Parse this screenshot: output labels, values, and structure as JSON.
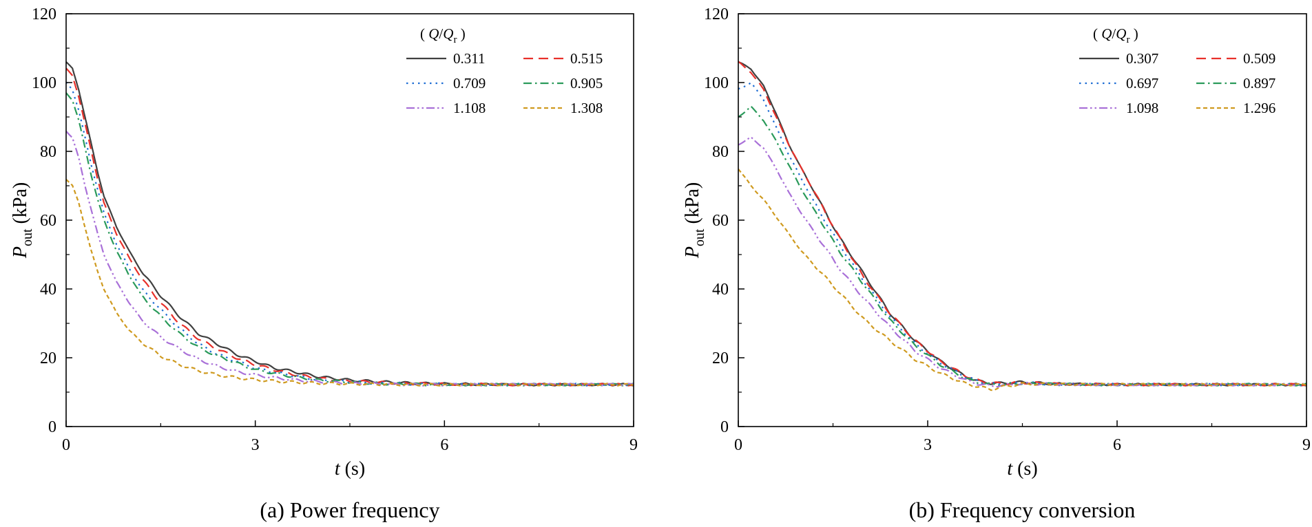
{
  "chart_data": [
    {
      "type": "line",
      "title": "",
      "caption": "(a) Power frequency",
      "xlabel": {
        "var": "t",
        "unit": " (s)"
      },
      "ylabel": {
        "var": "P",
        "sub": "out",
        "unit": " (kPa)"
      },
      "xlim": [
        0,
        9
      ],
      "ylim": [
        0,
        120
      ],
      "xticks": [
        0,
        3,
        6,
        9
      ],
      "yticks": [
        0,
        20,
        40,
        60,
        80,
        100,
        120
      ],
      "grid": false,
      "legend": {
        "title": "( Q/Q",
        "title_sub": "r",
        "title_end": " )",
        "position": "top-right"
      },
      "series": [
        {
          "name": "0.311",
          "color": "#404040",
          "dash": "solid",
          "x": [
            0,
            0.1,
            0.2,
            0.3,
            0.4,
            0.5,
            0.6,
            0.8,
            1.0,
            1.2,
            1.5,
            1.8,
            2.1,
            2.4,
            2.7,
            3.0,
            3.3,
            3.6,
            4.0,
            4.5,
            5.0,
            5.5,
            6.0,
            7.0,
            8.0,
            9.0
          ],
          "y": [
            106,
            104,
            98,
            90,
            82,
            74,
            67,
            58,
            51,
            45,
            38,
            32,
            27,
            24,
            21,
            19,
            17,
            16,
            14.5,
            13.5,
            13,
            12.6,
            12.4,
            12.2,
            12.2,
            12.2
          ]
        },
        {
          "name": "0.515",
          "color": "#e8302a",
          "dash": "dash",
          "x": [
            0,
            0.1,
            0.2,
            0.3,
            0.4,
            0.5,
            0.6,
            0.8,
            1.0,
            1.2,
            1.5,
            1.8,
            2.1,
            2.4,
            2.7,
            3.0,
            3.3,
            3.6,
            4.0,
            4.5,
            5.0,
            5.5,
            6.0,
            7.0,
            8.0,
            9.0
          ],
          "y": [
            104,
            102,
            96,
            88,
            80,
            72,
            65,
            56,
            49,
            43,
            36,
            30,
            25.5,
            22.5,
            20,
            18,
            16.5,
            15.2,
            14,
            13.2,
            12.8,
            12.5,
            12.3,
            12.2,
            12.2,
            12.2
          ]
        },
        {
          "name": "0.709",
          "color": "#1f6ed4",
          "dash": "dot",
          "x": [
            0,
            0.1,
            0.2,
            0.3,
            0.4,
            0.5,
            0.6,
            0.8,
            1.0,
            1.2,
            1.5,
            1.8,
            2.1,
            2.4,
            2.7,
            3.0,
            3.3,
            3.6,
            4.0,
            4.5,
            5.0,
            5.5,
            6.0,
            7.0,
            8.0,
            9.0
          ],
          "y": [
            100,
            98,
            92,
            84,
            76,
            69,
            62,
            53,
            46,
            40,
            34,
            28.5,
            24,
            21,
            19,
            17,
            15.8,
            14.8,
            13.6,
            13,
            12.6,
            12.4,
            12.3,
            12.2,
            12.2,
            12.2
          ]
        },
        {
          "name": "0.905",
          "color": "#2a9a5a",
          "dash": "dashdot",
          "x": [
            0,
            0.1,
            0.2,
            0.3,
            0.4,
            0.5,
            0.6,
            0.8,
            1.0,
            1.2,
            1.5,
            1.8,
            2.1,
            2.4,
            2.7,
            3.0,
            3.3,
            3.6,
            4.0,
            4.5,
            5.0,
            5.5,
            6.0,
            7.0,
            8.0,
            9.0
          ],
          "y": [
            97,
            95,
            89,
            81,
            73,
            66,
            60,
            51,
            44,
            38,
            32,
            27,
            23,
            20.5,
            18.5,
            16.5,
            15.5,
            14.5,
            13.5,
            12.9,
            12.5,
            12.3,
            12.2,
            12.2,
            12.2,
            12.2
          ]
        },
        {
          "name": "1.108",
          "color": "#a970d8",
          "dash": "dashdotdot",
          "x": [
            0,
            0.1,
            0.2,
            0.3,
            0.4,
            0.5,
            0.6,
            0.8,
            1.0,
            1.2,
            1.5,
            1.8,
            2.1,
            2.4,
            2.7,
            3.0,
            3.3,
            3.6,
            4.0,
            4.5,
            5.0,
            5.5,
            6.0,
            7.0,
            8.0,
            9.0
          ],
          "y": [
            86,
            84,
            78,
            70,
            63,
            56,
            50,
            42,
            36,
            31,
            26,
            22.5,
            19.5,
            17.5,
            16,
            15,
            14.2,
            13.6,
            13,
            12.6,
            12.4,
            12.2,
            12.2,
            12.2,
            12.2,
            12.2
          ]
        },
        {
          "name": "1.308",
          "color": "#cf9a1f",
          "dash": "shortdash",
          "x": [
            0,
            0.1,
            0.2,
            0.3,
            0.4,
            0.5,
            0.6,
            0.8,
            1.0,
            1.2,
            1.5,
            1.8,
            2.1,
            2.4,
            2.7,
            3.0,
            3.3,
            3.6,
            4.0,
            4.5,
            5.0,
            5.5,
            6.0,
            7.0,
            8.0,
            9.0
          ],
          "y": [
            72,
            70,
            65,
            58,
            51,
            45,
            40,
            33,
            28,
            24.5,
            20.5,
            18,
            16.2,
            15,
            14.2,
            13.6,
            13.2,
            12.9,
            12.6,
            12.4,
            12.3,
            12.2,
            12.2,
            12.2,
            12.2,
            12.2
          ]
        }
      ]
    },
    {
      "type": "line",
      "title": "",
      "caption": "(b) Frequency conversion",
      "xlabel": {
        "var": "t",
        "unit": " (s)"
      },
      "ylabel": {
        "var": "P",
        "sub": "out",
        "unit": " (kPa)"
      },
      "xlim": [
        0,
        9
      ],
      "ylim": [
        0,
        120
      ],
      "xticks": [
        0,
        3,
        6,
        9
      ],
      "yticks": [
        0,
        20,
        40,
        60,
        80,
        100,
        120
      ],
      "grid": false,
      "legend": {
        "title": "( Q/Q",
        "title_sub": "r",
        "title_end": " )",
        "position": "top-right"
      },
      "series": [
        {
          "name": "0.307",
          "color": "#404040",
          "dash": "solid",
          "x": [
            0,
            0.2,
            0.4,
            0.6,
            0.8,
            1.0,
            1.3,
            1.6,
            2.0,
            2.4,
            2.8,
            3.2,
            3.6,
            3.8,
            4.0,
            4.2,
            4.5,
            5.0,
            6.0,
            7.0,
            8.0,
            9.0
          ],
          "y": [
            106,
            104,
            99,
            91,
            82,
            75,
            65,
            55,
            44,
            33,
            25,
            19,
            14.5,
            13.2,
            12.6,
            12.6,
            12.9,
            12.4,
            12.2,
            12.2,
            12.2,
            12.2
          ]
        },
        {
          "name": "0.509",
          "color": "#e8302a",
          "dash": "dash",
          "x": [
            0,
            0.2,
            0.4,
            0.6,
            0.8,
            1.0,
            1.3,
            1.6,
            2.0,
            2.4,
            2.8,
            3.2,
            3.6,
            3.8,
            4.0,
            4.2,
            4.5,
            5.0,
            6.0,
            7.0,
            8.0,
            9.0
          ],
          "y": [
            106,
            103,
            98,
            90,
            82,
            75,
            65,
            55,
            43,
            33,
            25,
            19,
            14.8,
            13.4,
            12.6,
            12.5,
            12.8,
            12.4,
            12.2,
            12.2,
            12.2,
            12.2
          ]
        },
        {
          "name": "0.697",
          "color": "#1f6ed4",
          "dash": "dot",
          "x": [
            0,
            0.2,
            0.4,
            0.6,
            0.8,
            1.0,
            1.3,
            1.6,
            2.0,
            2.4,
            2.8,
            3.2,
            3.6,
            3.8,
            4.0,
            4.2,
            4.5,
            5.0,
            6.0,
            7.0,
            8.0,
            9.0
          ],
          "y": [
            98,
            100,
            95,
            87,
            79,
            72,
            62,
            53,
            42,
            32,
            24,
            18.5,
            14.5,
            13.2,
            12.4,
            12.4,
            12.7,
            12.3,
            12.2,
            12.2,
            12.2,
            12.2
          ]
        },
        {
          "name": "0.897",
          "color": "#2a9a5a",
          "dash": "dashdot",
          "x": [
            0,
            0.2,
            0.4,
            0.6,
            0.8,
            1.0,
            1.3,
            1.6,
            2.0,
            2.4,
            2.8,
            3.2,
            3.6,
            3.8,
            4.0,
            4.2,
            4.5,
            5.0,
            6.0,
            7.0,
            8.0,
            9.0
          ],
          "y": [
            90,
            93,
            89,
            83,
            76,
            69,
            60,
            51,
            41,
            31,
            23.5,
            18,
            14,
            12.8,
            12.2,
            12.2,
            12.6,
            12.3,
            12.2,
            12.2,
            12.2,
            12.2
          ]
        },
        {
          "name": "1.098",
          "color": "#a970d8",
          "dash": "dashdotdot",
          "x": [
            0,
            0.2,
            0.4,
            0.6,
            0.8,
            1.0,
            1.3,
            1.6,
            2.0,
            2.4,
            2.8,
            3.2,
            3.6,
            3.8,
            4.0,
            4.2,
            4.5,
            5.0,
            6.0,
            7.0,
            8.0,
            9.0
          ],
          "y": [
            82,
            84,
            81,
            75,
            68,
            62,
            54,
            46,
            37,
            29,
            22,
            17,
            13.5,
            12.4,
            11.8,
            12.0,
            12.5,
            12.3,
            12.2,
            12.2,
            12.2,
            12.2
          ]
        },
        {
          "name": "1.296",
          "color": "#cf9a1f",
          "dash": "shortdash",
          "x": [
            0,
            0.2,
            0.4,
            0.6,
            0.8,
            1.0,
            1.3,
            1.6,
            2.0,
            2.4,
            2.8,
            3.2,
            3.6,
            3.8,
            4.0,
            4.2,
            4.5,
            5.0,
            6.0,
            7.0,
            8.0,
            9.0
          ],
          "y": [
            75,
            70,
            66,
            61,
            56,
            51,
            45,
            39,
            31,
            25,
            19.5,
            15.5,
            12.5,
            11.6,
            10.8,
            11.6,
            12.4,
            12.3,
            12.2,
            12.2,
            12.2,
            12.2
          ]
        }
      ]
    }
  ]
}
